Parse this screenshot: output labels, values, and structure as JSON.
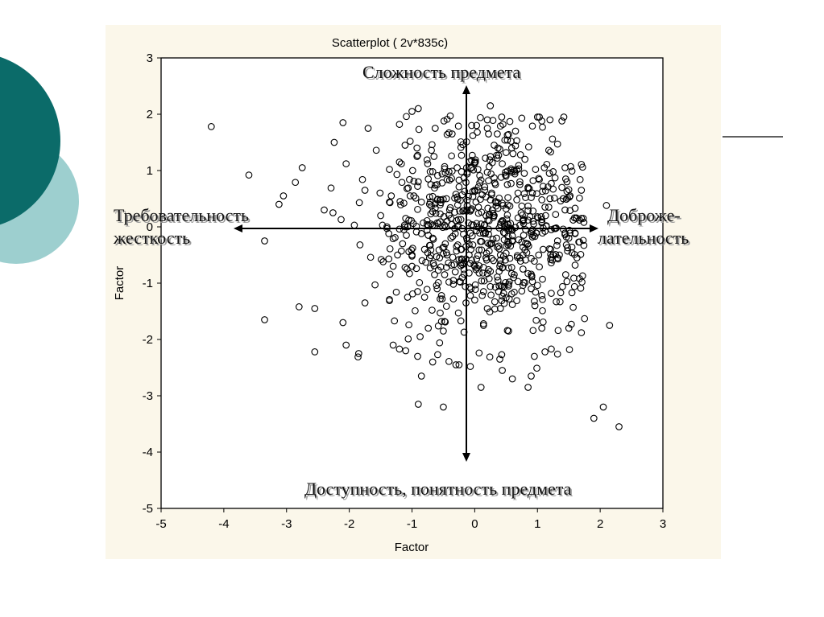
{
  "slide": {
    "colors": {
      "dark_teal": "#0b6b69",
      "light_teal": "#9dcfcf",
      "panel_bg": "#fbf7ea"
    }
  },
  "chart_data": {
    "type": "scatter",
    "title": "Scatterplot ( 2v*835c)",
    "xlabel": "Factor",
    "ylabel": "Factor",
    "xlim": [
      -5,
      3
    ],
    "ylim": [
      -5,
      3
    ],
    "x_ticks": [
      "-5",
      "-4",
      "-3",
      "-2",
      "-1",
      "0",
      "1",
      "2",
      "3"
    ],
    "y_ticks": [
      "3",
      "2",
      "1",
      "0",
      "-1",
      "-2",
      "-3",
      "-4",
      "-5"
    ],
    "grid": false,
    "marker": "open-circle",
    "n_points": 835,
    "points": [
      [
        -4.2,
        1.78
      ],
      [
        -3.6,
        0.92
      ],
      [
        -3.35,
        -1.65
      ],
      [
        -3.35,
        -0.25
      ],
      [
        -2.8,
        -1.42
      ],
      [
        -2.55,
        -2.22
      ],
      [
        -2.55,
        -1.45
      ],
      [
        -2.1,
        -1.7
      ],
      [
        -2.05,
        -2.1
      ],
      [
        -1.85,
        -2.25
      ],
      [
        -1.75,
        -1.35
      ],
      [
        -0.9,
        -3.15
      ],
      [
        -0.5,
        -3.2
      ],
      [
        -0.85,
        -2.65
      ],
      [
        0.1,
        -2.85
      ],
      [
        0.9,
        -2.65
      ],
      [
        0.85,
        -2.85
      ],
      [
        1.9,
        -3.4
      ],
      [
        2.05,
        -3.2
      ],
      [
        2.3,
        -3.55
      ],
      [
        2.15,
        -1.75
      ],
      [
        -1.0,
        2.05
      ],
      [
        0.25,
        2.15
      ],
      [
        1.2,
        1.9
      ],
      [
        -0.9,
        2.1
      ],
      [
        -2.4,
        0.3
      ],
      [
        -2.75,
        1.05
      ],
      [
        -3.05,
        0.55
      ],
      [
        -1.2,
        1.82
      ],
      [
        1.7,
        0.15
      ],
      [
        2.1,
        0.38
      ],
      [
        -0.5,
        -1.85
      ],
      [
        0.4,
        -2.35
      ],
      [
        0.95,
        -2.3
      ],
      [
        -0.25,
        -2.45
      ],
      [
        -1.3,
        -2.1
      ],
      [
        -1.1,
        -2.2
      ],
      [
        0.6,
        -2.7
      ],
      [
        1.5,
        -1.8
      ],
      [
        -0.7,
        0.75
      ],
      [
        -0.4,
        0.3
      ],
      [
        0.5,
        0.9
      ],
      [
        0.3,
        -0.6
      ],
      [
        0.8,
        1.2
      ],
      [
        -0.2,
        -0.9
      ],
      [
        1.2,
        0.5
      ],
      [
        -1.5,
        0.2
      ],
      [
        0.9,
        -1.1
      ],
      [
        0.1,
        0.05
      ],
      [
        -0.8,
        -0.4
      ]
    ],
    "point_summary": {
      "x_mean": 0.0,
      "x_sd": 1.0,
      "y_mean": 0.0,
      "y_sd": 1.0,
      "correlation": 0.0
    },
    "annotations": [
      "Сложность предмета",
      "Доступность, понятность предмета",
      "Требовательность",
      "жесткость",
      "Доброже-",
      "лательность"
    ]
  }
}
